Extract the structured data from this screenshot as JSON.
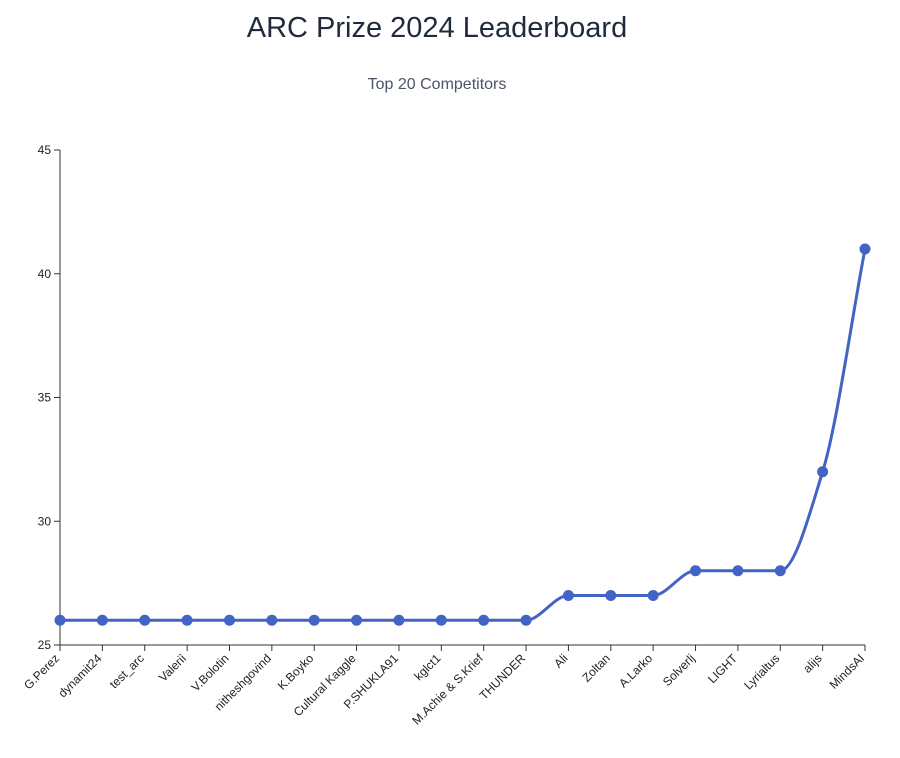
{
  "chart_data": {
    "type": "line",
    "title": "ARC Prize 2024 Leaderboard",
    "subtitle": "Top 20 Competitors",
    "xlabel": "",
    "ylabel": "",
    "ylim": [
      25,
      45
    ],
    "yticks": [
      25,
      30,
      35,
      40,
      45
    ],
    "grid": false,
    "categories": [
      "G.Perez",
      "dynamit24",
      "test_arc",
      "Valeriì",
      "V.Bolotin",
      "nitheshgovind",
      "K.Boyko",
      "Cultural Kaggle",
      "P.SHUKLA91",
      "kglct1",
      "M.Achie & S.Krief",
      "THUNDER",
      "Ali",
      "Zoltan",
      "A.Larko",
      "Solverlj",
      "LIGHT",
      "Lyrialtus",
      "alijs",
      "MindsAI"
    ],
    "series": [
      {
        "values": [
          26,
          26,
          26,
          26,
          26,
          26,
          26,
          26,
          26,
          26,
          26,
          26,
          27,
          27,
          27,
          28,
          28,
          28,
          32,
          41
        ]
      }
    ],
    "color": "#4264c4"
  }
}
